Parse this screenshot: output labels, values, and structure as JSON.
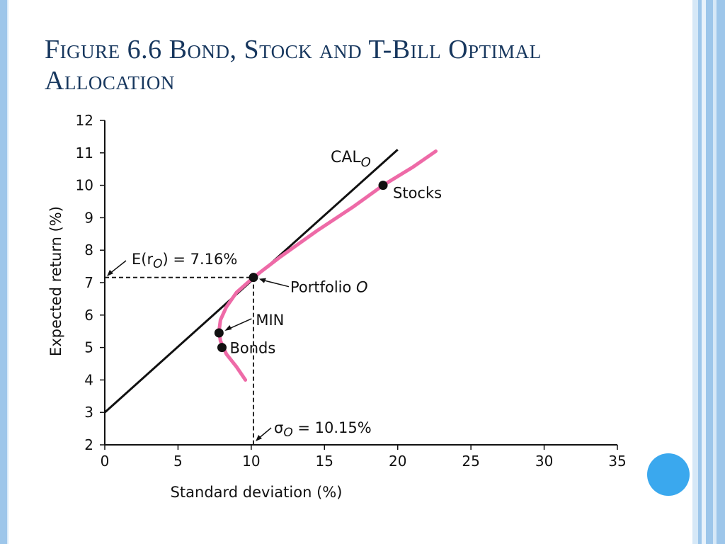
{
  "slide": {
    "title": "Figure 6.6 Bond, Stock and T-Bill Optimal Allocation",
    "accent_color": "#17375e",
    "decor_circle_color": "#3aa8ee",
    "stripe_color": "#9dc6ea"
  },
  "chart_data": {
    "type": "line",
    "xlabel": "Standard deviation (%)",
    "ylabel": "Expected return (%)",
    "xlim": [
      0,
      35
    ],
    "ylim": [
      2,
      12
    ],
    "x_ticks": [
      0,
      5,
      10,
      15,
      20,
      25,
      30,
      35
    ],
    "y_ticks": [
      2,
      3,
      4,
      5,
      6,
      7,
      8,
      9,
      10,
      11,
      12
    ],
    "grid": false,
    "series": [
      {
        "name": "CAL",
        "name_subscript": "O",
        "color": "#111111",
        "x": [
          0,
          20
        ],
        "y": [
          3,
          11.1
        ]
      },
      {
        "name": "",
        "color": "#ee6aa7",
        "x": [
          9.6,
          9.0,
          8.3,
          7.9,
          7.8,
          7.9,
          8.3,
          9.0,
          10.15,
          12.0,
          14.5,
          17.0,
          19.0,
          21.0,
          22.6
        ],
        "y": [
          4.0,
          4.4,
          4.8,
          5.2,
          5.5,
          5.85,
          6.25,
          6.7,
          7.16,
          7.8,
          8.6,
          9.35,
          10.0,
          10.55,
          11.05
        ]
      }
    ],
    "points": [
      {
        "label": "Stocks",
        "x": 19,
        "y": 10
      },
      {
        "label": "Portfolio",
        "label_italic": "O",
        "x": 10.15,
        "y": 7.16
      },
      {
        "label": "MIN",
        "x": 7.8,
        "y": 5.45
      },
      {
        "label": "Bonds",
        "x": 8.0,
        "y": 5.0
      }
    ],
    "annotations": {
      "er_label": "E(r",
      "er_sub": "O",
      "er_value": ") = 7.16%",
      "sigma_symbol": "σ",
      "sigma_sub": "O",
      "sigma_value": " = 10.15%",
      "er_y": 7.16,
      "sigma_x": 10.15
    }
  }
}
